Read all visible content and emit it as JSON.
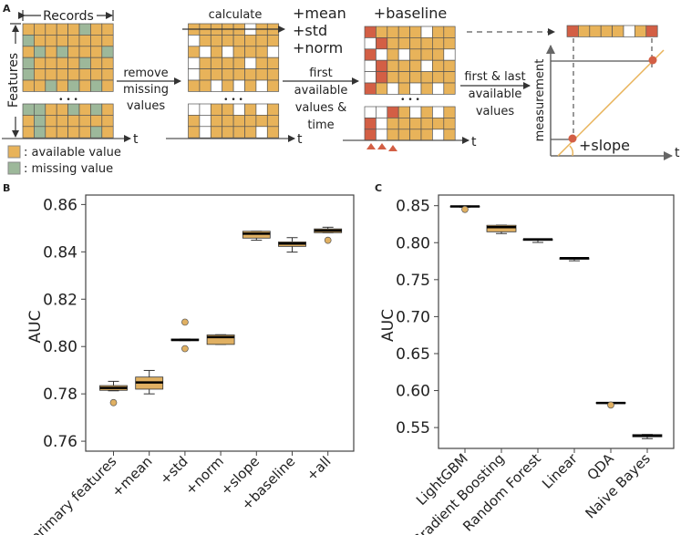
{
  "colors": {
    "available": "#e8b35a",
    "missing": "#9db89a",
    "first_last": "#d35f45",
    "removed": "#ffffff",
    "grid_line": "#555555",
    "box_fill": "#e0b062",
    "outlier": "#e0b062"
  },
  "panel_a": {
    "label": "A",
    "records_label": "Records",
    "features_label": "Features",
    "t": "t",
    "ellipsis": "• • •",
    "legend": {
      "available": ": available value",
      "missing": ": missing value"
    },
    "step1": [
      "remove",
      "missing",
      "values"
    ],
    "calculate_label": "calculate",
    "calc_features": [
      "+mean",
      "+std",
      "+norm"
    ],
    "step2": [
      "first",
      "available",
      "values &",
      "time"
    ],
    "baseline_label": "+baseline",
    "step3": [
      "first & last",
      "available",
      "values"
    ],
    "measurement_label": "measurement",
    "slope_label": "+slope",
    "raw_grid_upper": [
      "AAAAAMAA",
      "MAAAAAAA",
      "AMAMAAAM",
      "MAAAAMAA",
      "MAAAAAAA",
      "AAMAMAMA"
    ],
    "raw_grid_lower": [
      "MMAAMAMA",
      "AMAAAAAA",
      "AMAAAAMA"
    ],
    "clean_grid_upper": [
      "AAAAAWAA",
      "WAAAAAAA",
      "AWAWAAAW",
      "WAAAAWAA",
      "WAAAAAAA",
      "AAWAWAWA"
    ],
    "clean_grid_lower": [
      "WWAAWAWA",
      "AWAAAAAA",
      "AWAAAAWA"
    ],
    "baseline_grid_upper": [
      "RAAAAWAA",
      "WRAAAAAA",
      "RWAWAAAW",
      "WRAAAWAA",
      "WRAAAAAA",
      "RAWAWAWA"
    ],
    "baseline_grid_lower": [
      "WWRAWAWA",
      "RWAAAAAA",
      "RWAAAAWA"
    ],
    "feature_row": "RAAAAWAR"
  },
  "chart_data": [
    {
      "panel_label": "B",
      "type": "box",
      "ylabel": "AUC",
      "ylim": [
        0.7558,
        0.864
      ],
      "yticks": [
        0.76,
        0.78,
        0.8,
        0.82,
        0.84,
        0.86
      ],
      "ytick_labels": [
        "0.76",
        "0.78",
        "0.80",
        "0.82",
        "0.84",
        "0.86"
      ],
      "categories": [
        "primary features",
        "+mean",
        "+std",
        "+norm",
        "+slope",
        "+baseline",
        "+all"
      ],
      "boxes": [
        {
          "whisker_low": 0.7813,
          "q1": 0.7815,
          "median": 0.7825,
          "q3": 0.7835,
          "whisker_high": 0.7853,
          "outliers": [
            0.7763
          ]
        },
        {
          "whisker_low": 0.78,
          "q1": 0.782,
          "median": 0.7848,
          "q3": 0.7871,
          "whisker_high": 0.7899,
          "outliers": []
        },
        {
          "whisker_low": 0.8025,
          "q1": 0.8025,
          "median": 0.8028,
          "q3": 0.8032,
          "whisker_high": 0.8032,
          "outliers": [
            0.8103,
            0.7991
          ]
        },
        {
          "whisker_low": 0.8009,
          "q1": 0.8009,
          "median": 0.804,
          "q3": 0.8049,
          "whisker_high": 0.805,
          "outliers": []
        },
        {
          "whisker_low": 0.8449,
          "q1": 0.8458,
          "median": 0.8477,
          "q3": 0.8487,
          "whisker_high": 0.8487,
          "outliers": []
        },
        {
          "whisker_low": 0.8399,
          "q1": 0.8423,
          "median": 0.8435,
          "q3": 0.8442,
          "whisker_high": 0.846,
          "outliers": []
        },
        {
          "whisker_low": 0.8481,
          "q1": 0.8481,
          "median": 0.849,
          "q3": 0.8497,
          "whisker_high": 0.8504,
          "outliers": [
            0.8449
          ]
        }
      ],
      "grid": false
    },
    {
      "panel_label": "C",
      "type": "box",
      "ylabel": "AUC",
      "ylim": [
        0.5218,
        0.8644
      ],
      "yticks": [
        0.55,
        0.6,
        0.65,
        0.7,
        0.75,
        0.8,
        0.85
      ],
      "ytick_labels": [
        "0.55",
        "0.60",
        "0.65",
        "0.70",
        "0.75",
        "0.80",
        "0.85"
      ],
      "categories": [
        "LightGBM",
        "Gradient Boosting",
        "Random Forest",
        "Linear",
        "QDA",
        "Naive Bayes"
      ],
      "boxes": [
        {
          "whisker_low": 0.848,
          "q1": 0.8482,
          "median": 0.849,
          "q3": 0.8495,
          "whisker_high": 0.8497,
          "outliers": [
            0.845
          ]
        },
        {
          "whisker_low": 0.8123,
          "q1": 0.8147,
          "median": 0.8209,
          "q3": 0.8235,
          "whisker_high": 0.8237,
          "outliers": []
        },
        {
          "whisker_low": 0.8003,
          "q1": 0.803,
          "median": 0.8044,
          "q3": 0.805,
          "whisker_high": 0.8052,
          "outliers": []
        },
        {
          "whisker_low": 0.7755,
          "q1": 0.7775,
          "median": 0.779,
          "q3": 0.7795,
          "whisker_high": 0.7797,
          "outliers": []
        },
        {
          "whisker_low": 0.5825,
          "q1": 0.5825,
          "median": 0.5833,
          "q3": 0.584,
          "whisker_high": 0.584,
          "outliers": [
            0.5805
          ]
        },
        {
          "whisker_low": 0.535,
          "q1": 0.5375,
          "median": 0.539,
          "q3": 0.5405,
          "whisker_high": 0.5407,
          "outliers": []
        }
      ],
      "grid": false
    }
  ]
}
